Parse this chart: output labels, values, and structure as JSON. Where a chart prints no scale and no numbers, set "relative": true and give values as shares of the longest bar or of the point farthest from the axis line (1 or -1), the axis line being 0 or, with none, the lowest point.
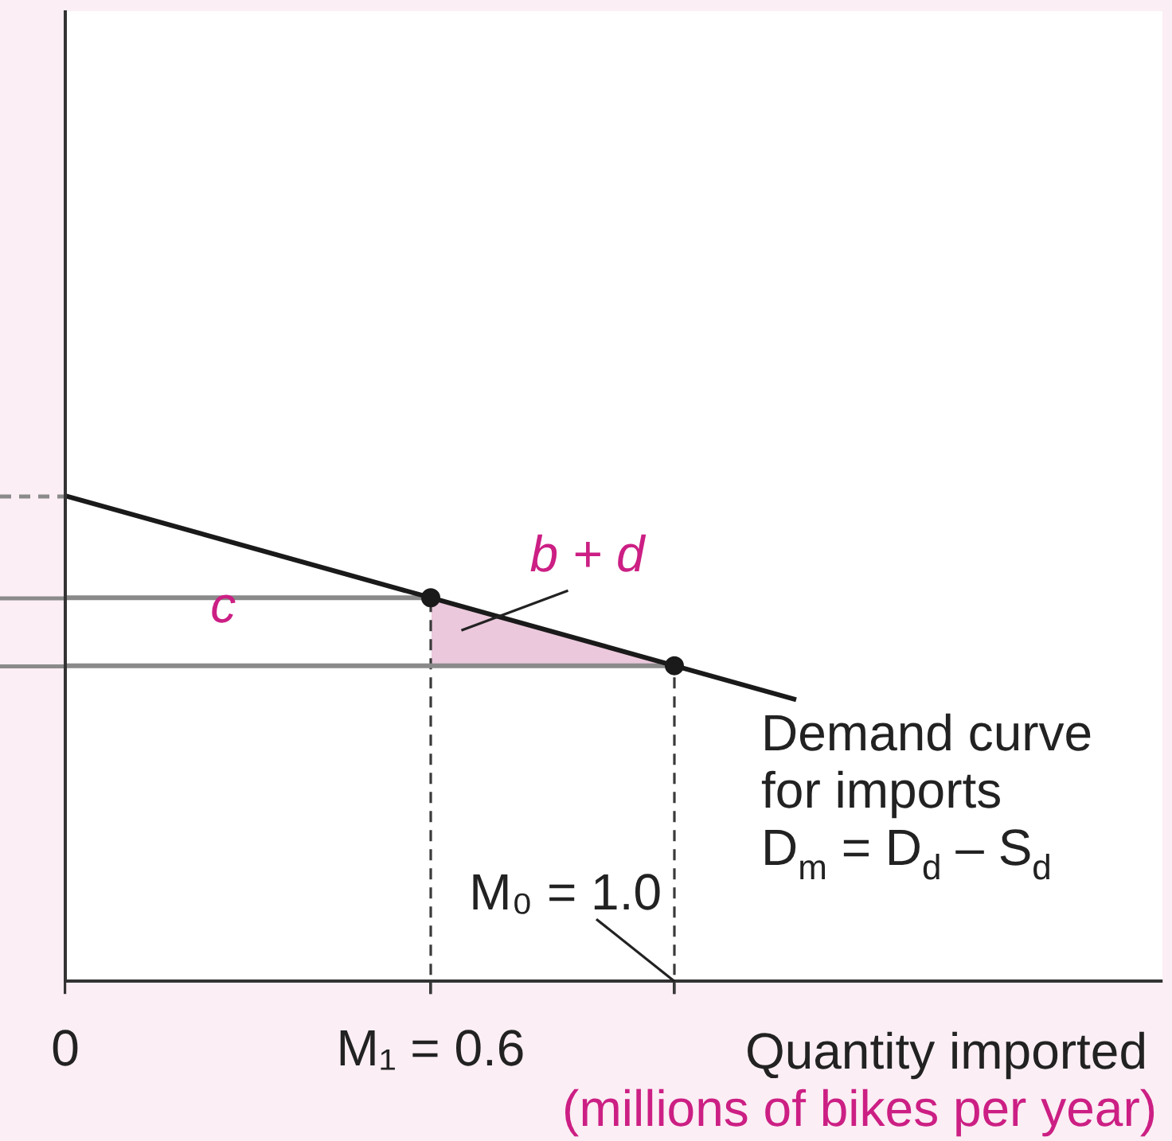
{
  "chart_data": {
    "type": "line",
    "relative": true,
    "xlabel": "Quantity imported (millions of bikes per year)",
    "xlim": [
      0,
      1.8
    ],
    "xticks": [
      0,
      {
        "value": 0.6,
        "label": "M₁ = 0.6"
      },
      {
        "value": 1.0,
        "label": null
      }
    ],
    "tick_labels": "x",
    "series": [
      {
        "x": [
          0,
          0.6,
          1.0,
          1.2
        ],
        "values": [
          1,
          0.79,
          0.65,
          0.58
        ],
        "color": "#1a1a1a"
      },
      {
        "type": "scatter",
        "x": [
          0.6,
          1.0
        ],
        "values": [
          0.79,
          0.65
        ],
        "color": "#1a1a1a",
        "marker": "circle"
      },
      {
        "x": [
          0,
          0.6
        ],
        "values": [
          0.79,
          0.79
        ],
        "color": "#8a8a8a"
      },
      {
        "x": [
          0,
          1.0
        ],
        "values": [
          0.65,
          0.65
        ],
        "color": "#8a8a8a"
      }
    ],
    "ref_lines": [
      {
        "axis": "x",
        "value": 0.6,
        "line_style": "dashed",
        "color": "#3a3a3a"
      },
      {
        "axis": "x",
        "value": 1.0,
        "line_style": "dashed",
        "color": "#3a3a3a"
      }
    ],
    "annotations": [
      "c",
      "b + d",
      {
        "text": "Demand curve\nfor imports\nD$_{m}$ = D$_{d}$ – S$_{d}$",
        "x": 1.2,
        "y": 0.58
      },
      {
        "text": "M₀ = 1.0",
        "x": 1.0,
        "y": 0
      }
    ]
  }
}
